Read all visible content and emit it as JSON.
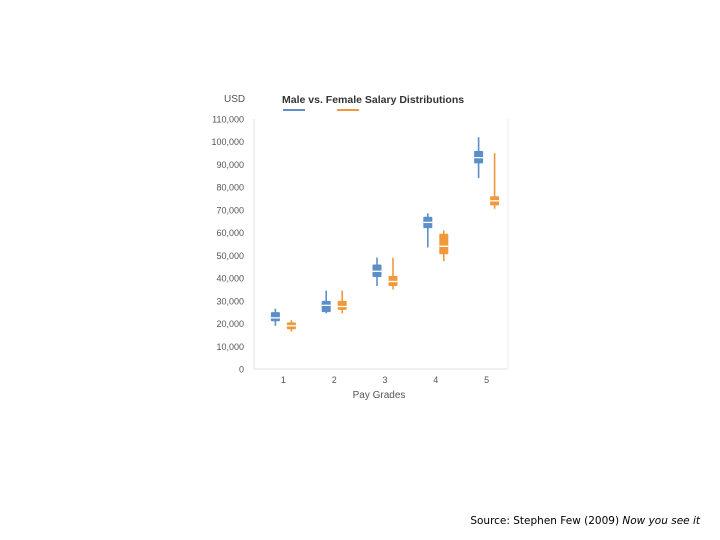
{
  "chart_data": {
    "type": "box",
    "title": "Male vs. Female Salary Distributions",
    "ylabel": "USD",
    "xlabel": "Pay Grades",
    "categories": [
      "1",
      "2",
      "3",
      "4",
      "5"
    ],
    "ylim": [
      0,
      110000
    ],
    "yticks": [
      "0",
      "10,000",
      "20,000",
      "30,000",
      "40,000",
      "50,000",
      "60,000",
      "70,000",
      "80,000",
      "90,000",
      "100,000",
      "110,000"
    ],
    "legend": "top, under title (colored line keys)",
    "grid": false,
    "series": [
      {
        "color": "#5b8fc9",
        "boxes": [
          {
            "min": 19000,
            "q1": 21000,
            "median": 22500,
            "q3": 25000,
            "max": 26500
          },
          {
            "min": 24500,
            "q1": 25000,
            "median": 28000,
            "q3": 30000,
            "max": 34500
          },
          {
            "min": 36500,
            "q1": 40500,
            "median": 43000,
            "q3": 46000,
            "max": 49000
          },
          {
            "min": 53500,
            "q1": 62000,
            "median": 64500,
            "q3": 67000,
            "max": 68500
          },
          {
            "min": 84000,
            "q1": 90500,
            "median": 93000,
            "q3": 96000,
            "max": 102000
          }
        ]
      },
      {
        "color": "#f0993a",
        "boxes": [
          {
            "min": 16500,
            "q1": 17500,
            "median": 19000,
            "q3": 20500,
            "max": 21500
          },
          {
            "min": 24500,
            "q1": 26000,
            "median": 27500,
            "q3": 30000,
            "max": 34500
          },
          {
            "min": 35000,
            "q1": 36500,
            "median": 38500,
            "q3": 41000,
            "max": 49000
          },
          {
            "min": 47500,
            "q1": 50500,
            "median": 54000,
            "q3": 59500,
            "max": 61000
          },
          {
            "min": 70500,
            "q1": 72000,
            "median": 74000,
            "q3": 76000,
            "max": 95000
          }
        ]
      }
    ]
  },
  "source": {
    "prefix": "Source: Stephen Few (2009) ",
    "italic": "Now you see it"
  }
}
